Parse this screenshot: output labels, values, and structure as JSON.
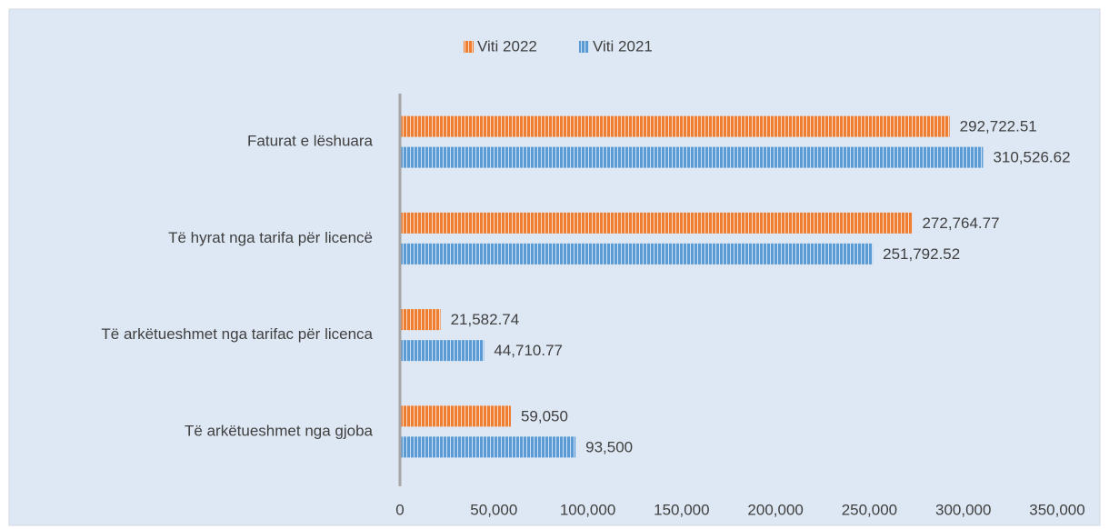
{
  "chart_data": {
    "type": "bar",
    "orientation": "horizontal",
    "categories": [
      "Faturat e lëshuara",
      "Të hyrat nga tarifa për licencë",
      "Të arkëtueshmet nga tarifac për licenca",
      "Të arkëtueshmet nga gjoba"
    ],
    "series": [
      {
        "name": "Viti 2022",
        "color": "#ed7d31",
        "values": [
          292722.51,
          272764.77,
          21582.74,
          59050
        ],
        "value_labels": [
          "292,722.51",
          "272,764.77",
          "21,582.74",
          "59,050"
        ]
      },
      {
        "name": "Viti 2021",
        "color": "#5b9bd5",
        "values": [
          310526.62,
          251792.52,
          44710.77,
          93500
        ],
        "value_labels": [
          "310,526.62",
          "251,792.52",
          "44,710.77",
          "93,500"
        ]
      }
    ],
    "xlim": [
      0,
      350000
    ],
    "xticks": [
      0,
      {
        "value": 50000,
        "label": "50,000"
      },
      {
        "value": 100000,
        "label": "100,000"
      },
      {
        "value": 150000,
        "label": "150,000"
      },
      {
        "value": 200000,
        "label": "200,000"
      },
      {
        "value": 250000,
        "label": "250,000"
      },
      {
        "value": 300000,
        "label": "300,000"
      },
      {
        "value": 350000,
        "label": "350,000"
      }
    ],
    "legend": "top",
    "grid": false
  }
}
